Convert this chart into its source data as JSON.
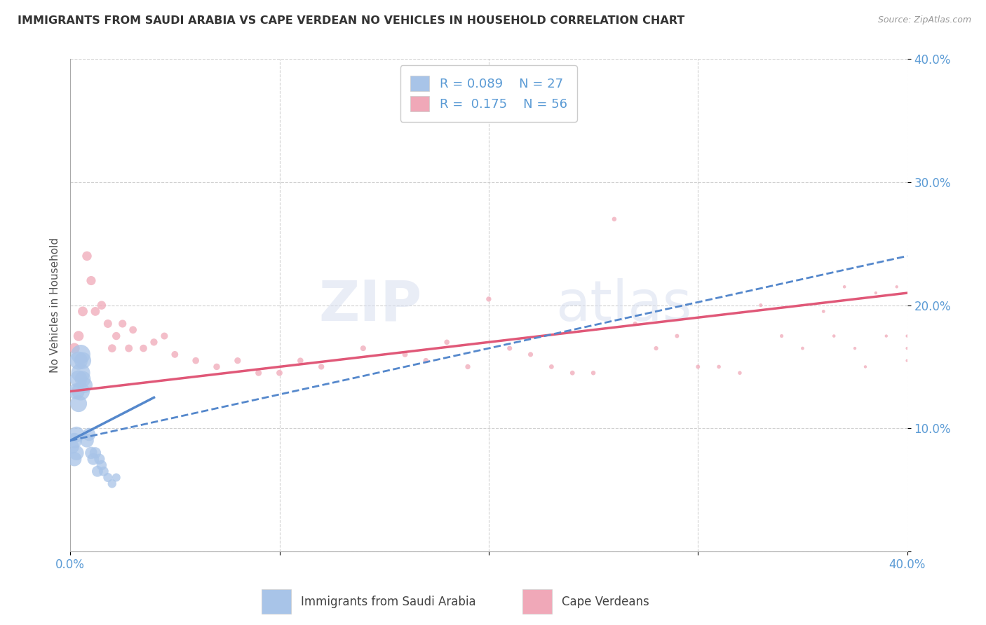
{
  "title": "IMMIGRANTS FROM SAUDI ARABIA VS CAPE VERDEAN NO VEHICLES IN HOUSEHOLD CORRELATION CHART",
  "source": "Source: ZipAtlas.com",
  "ylabel": "No Vehicles in Household",
  "xlim": [
    0.0,
    0.4
  ],
  "ylim": [
    0.0,
    0.4
  ],
  "xticks": [
    0.0,
    0.1,
    0.2,
    0.3,
    0.4
  ],
  "yticks": [
    0.0,
    0.1,
    0.2,
    0.3,
    0.4
  ],
  "legend_r1": "R = 0.089",
  "legend_n1": "N = 27",
  "legend_r2": "R =  0.175",
  "legend_n2": "N = 56",
  "series1_color": "#a8c4e8",
  "series2_color": "#f0a8b8",
  "trendline1_color": "#5588cc",
  "trendline2_color": "#e05878",
  "watermark_zip": "ZIP",
  "watermark_atlas": "atlas",
  "background_color": "#ffffff",
  "tick_color": "#5b9bd5",
  "series1_x": [
    0.001,
    0.002,
    0.002,
    0.003,
    0.003,
    0.003,
    0.004,
    0.004,
    0.004,
    0.005,
    0.005,
    0.005,
    0.006,
    0.006,
    0.007,
    0.008,
    0.009,
    0.01,
    0.011,
    0.012,
    0.013,
    0.014,
    0.015,
    0.016,
    0.018,
    0.02,
    0.022
  ],
  "series1_y": [
    0.085,
    0.09,
    0.075,
    0.13,
    0.095,
    0.08,
    0.155,
    0.14,
    0.12,
    0.16,
    0.145,
    0.13,
    0.155,
    0.14,
    0.135,
    0.09,
    0.095,
    0.08,
    0.075,
    0.08,
    0.065,
    0.075,
    0.07,
    0.065,
    0.06,
    0.055,
    0.06
  ],
  "series1_sizes": [
    200,
    250,
    220,
    280,
    260,
    230,
    350,
    320,
    300,
    400,
    380,
    350,
    300,
    270,
    250,
    200,
    180,
    160,
    150,
    140,
    130,
    120,
    110,
    100,
    90,
    80,
    75
  ],
  "series2_x": [
    0.002,
    0.004,
    0.006,
    0.008,
    0.01,
    0.012,
    0.015,
    0.018,
    0.02,
    0.022,
    0.025,
    0.028,
    0.03,
    0.035,
    0.04,
    0.045,
    0.05,
    0.06,
    0.07,
    0.08,
    0.09,
    0.1,
    0.11,
    0.12,
    0.14,
    0.16,
    0.17,
    0.18,
    0.19,
    0.2,
    0.21,
    0.22,
    0.23,
    0.24,
    0.25,
    0.26,
    0.27,
    0.28,
    0.29,
    0.3,
    0.31,
    0.32,
    0.33,
    0.34,
    0.35,
    0.36,
    0.365,
    0.37,
    0.375,
    0.38,
    0.385,
    0.39,
    0.395,
    0.4,
    0.4,
    0.4
  ],
  "series2_y": [
    0.165,
    0.175,
    0.195,
    0.24,
    0.22,
    0.195,
    0.2,
    0.185,
    0.165,
    0.175,
    0.185,
    0.165,
    0.18,
    0.165,
    0.17,
    0.175,
    0.16,
    0.155,
    0.15,
    0.155,
    0.145,
    0.145,
    0.155,
    0.15,
    0.165,
    0.16,
    0.155,
    0.17,
    0.15,
    0.205,
    0.165,
    0.16,
    0.15,
    0.145,
    0.145,
    0.27,
    0.185,
    0.165,
    0.175,
    0.15,
    0.15,
    0.145,
    0.2,
    0.175,
    0.165,
    0.195,
    0.175,
    0.215,
    0.165,
    0.15,
    0.21,
    0.175,
    0.215,
    0.155,
    0.165,
    0.175
  ],
  "series2_sizes": [
    120,
    110,
    100,
    95,
    90,
    85,
    80,
    75,
    70,
    68,
    65,
    62,
    60,
    58,
    55,
    52,
    50,
    48,
    46,
    44,
    42,
    40,
    38,
    36,
    34,
    32,
    30,
    30,
    28,
    28,
    26,
    26,
    24,
    24,
    22,
    22,
    20,
    20,
    18,
    18,
    16,
    16,
    14,
    14,
    12,
    12,
    11,
    11,
    10,
    10,
    10,
    10,
    10,
    10,
    10,
    10
  ],
  "trendline1_x0": 0.0,
  "trendline1_y0": 0.09,
  "trendline1_x1": 0.04,
  "trendline1_y1": 0.125,
  "trendline2_x0": 0.0,
  "trendline2_y0": 0.13,
  "trendline2_x1": 0.4,
  "trendline2_y1": 0.21,
  "trendline_dash_x0": 0.0,
  "trendline_dash_y0": 0.09,
  "trendline_dash_x1": 0.4,
  "trendline_dash_y1": 0.24
}
